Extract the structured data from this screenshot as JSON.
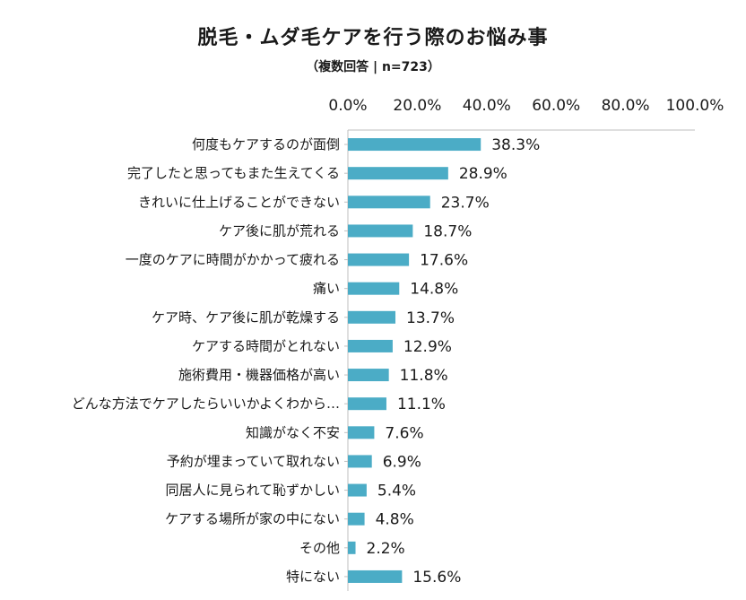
{
  "chart_data": {
    "type": "bar",
    "orientation": "horizontal",
    "title": "脱毛・ムダ毛ケアを行う際のお悩み事",
    "subtitle": "（複数回答 | n=723）",
    "categories": [
      "何度もケアするのが面倒",
      "完了したと思ってもまた生えてくる",
      "きれいに仕上げることができない",
      "ケア後に肌が荒れる",
      "一度のケアに時間がかかって疲れる",
      "痛い",
      "ケア時、ケア後に肌が乾燥する",
      "ケアする時間がとれない",
      "施術費用・機器価格が高い",
      "どんな方法でケアしたらいいかよくわから…",
      "知識がなく不安",
      "予約が埋まっていて取れない",
      "同居人に見られて恥ずかしい",
      "ケアする場所が家の中にない",
      "その他",
      "特にない"
    ],
    "values": [
      38.3,
      28.9,
      23.7,
      18.7,
      17.6,
      14.8,
      13.7,
      12.9,
      11.8,
      11.1,
      7.6,
      6.9,
      5.4,
      4.8,
      2.2,
      15.6
    ],
    "data_labels": [
      "38.3%",
      "28.9%",
      "23.7%",
      "18.7%",
      "17.6%",
      "14.8%",
      "13.7%",
      "12.9%",
      "11.8%",
      "11.1%",
      "7.6%",
      "6.9%",
      "5.4%",
      "4.8%",
      "2.2%",
      "15.6%"
    ],
    "xlim": [
      0,
      100
    ],
    "x_ticks": [
      "0.0%",
      "20.0%",
      "40.0%",
      "60.0%",
      "80.0%",
      "100.0%"
    ],
    "axis_position": "top",
    "grid": false,
    "bar_color": "#4bacc6"
  }
}
